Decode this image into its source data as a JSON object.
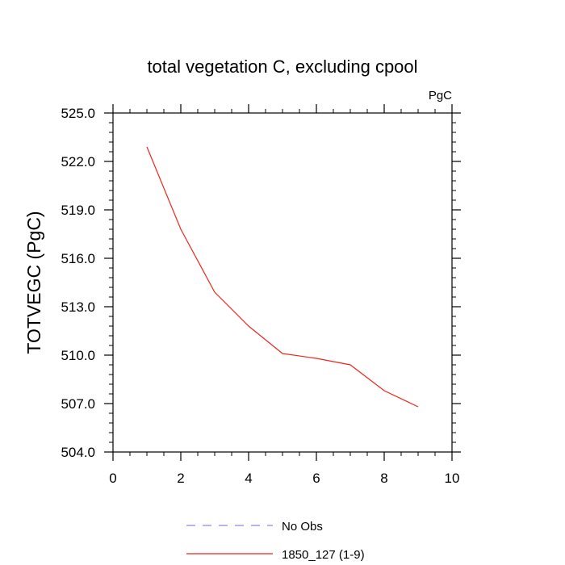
{
  "chart_data": {
    "type": "line",
    "title": "total vegetation C, excluding cpool",
    "units_label": "PgC",
    "ylabel": "TOTVEGC  (PgC)",
    "xlabel": "",
    "xlim": [
      0,
      10
    ],
    "ylim": [
      504.0,
      525.0
    ],
    "x_ticks": [
      0,
      2,
      4,
      6,
      8,
      10
    ],
    "x_tick_labels": [
      "0",
      "2",
      "4",
      "6",
      "8",
      "10"
    ],
    "y_ticks": [
      504.0,
      507.0,
      510.0,
      513.0,
      516.0,
      519.0,
      522.0,
      525.0
    ],
    "y_tick_labels": [
      "504.0",
      "507.0",
      "510.0",
      "513.0",
      "516.0",
      "519.0",
      "522.0",
      "525.0"
    ],
    "grid": false,
    "legend_position": "bottom",
    "series": [
      {
        "name": "No Obs",
        "color": "#8a8ae0",
        "dash": "dashed",
        "x": [],
        "y": []
      },
      {
        "name": "1850_127 (1-9)",
        "color": "#e8281e",
        "dash": "solid",
        "x": [
          1,
          2,
          3,
          4,
          5,
          6,
          7,
          8,
          9
        ],
        "y": [
          522.9,
          517.8,
          513.9,
          511.8,
          510.1,
          509.8,
          509.4,
          507.8,
          506.8
        ]
      }
    ]
  }
}
